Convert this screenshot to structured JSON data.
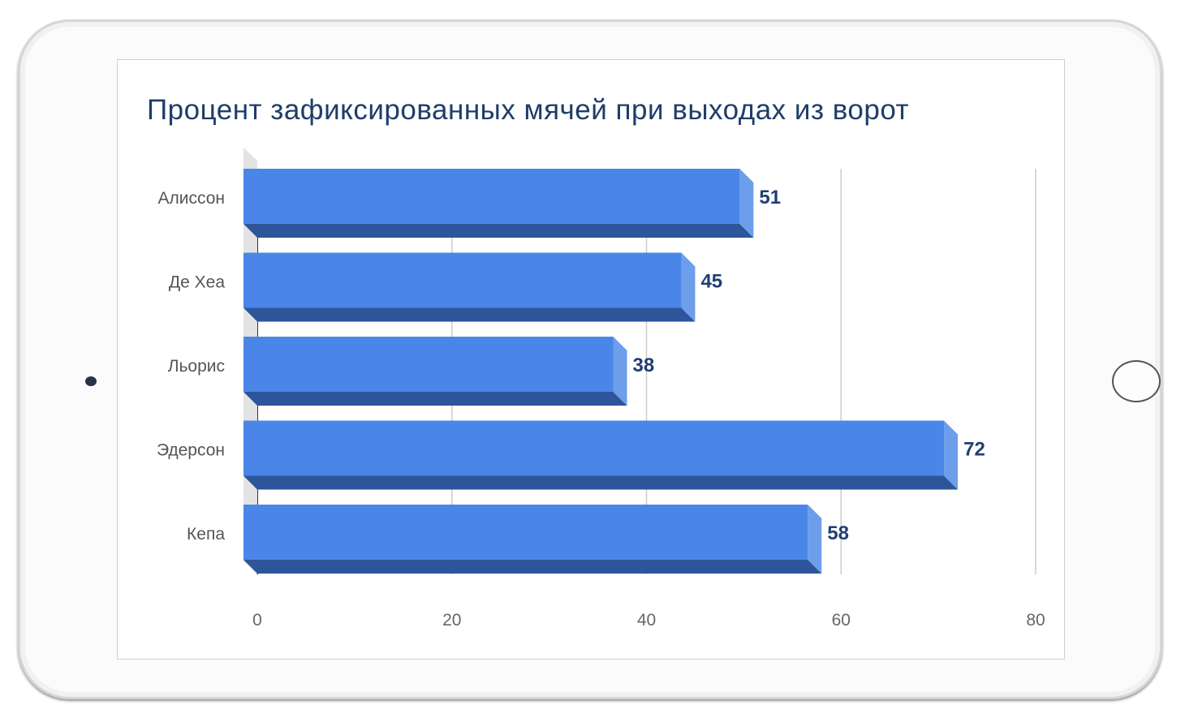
{
  "chart_data": {
    "type": "bar",
    "orientation": "horizontal",
    "title": "Процент зафиксированных мячей при выходах из ворот",
    "categories": [
      "Алиссон",
      "Де Хеа",
      "Льорис",
      "Эдерсон",
      "Кепа"
    ],
    "values": [
      51,
      45,
      38,
      72,
      58
    ],
    "xlim": [
      0,
      80
    ],
    "xticks": [
      "0",
      "20",
      "40",
      "60",
      "80"
    ],
    "grid": true,
    "legend": "none",
    "colors": {
      "bar_face": "#4a86e8",
      "bar_bottom": "#2e5599",
      "bar_end": "#6d9eeb",
      "label": "#1f3f73"
    }
  }
}
